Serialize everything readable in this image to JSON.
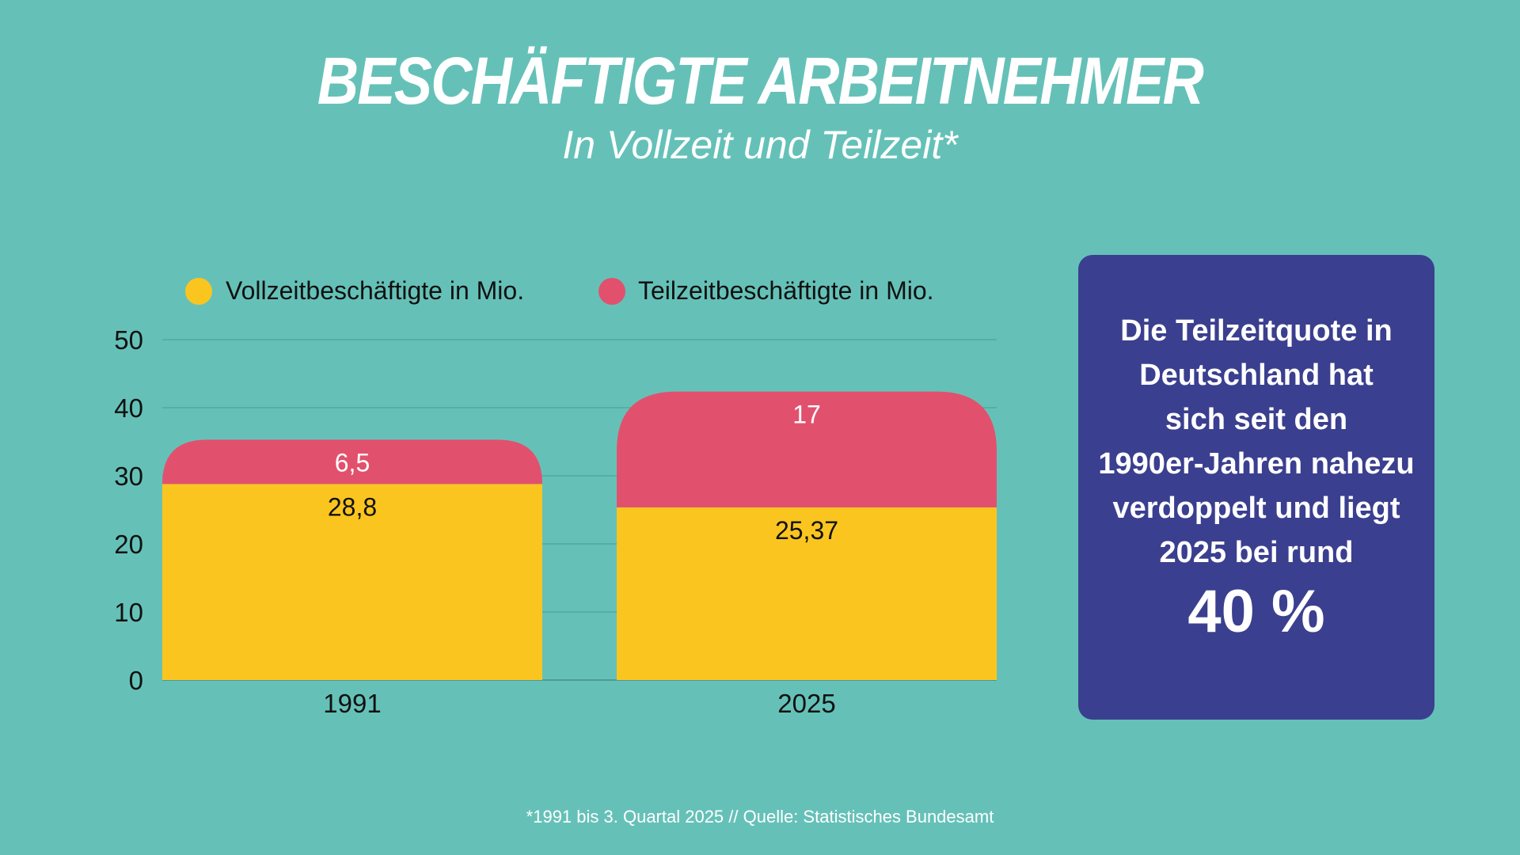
{
  "header": {
    "title": "BESCHÄFTIGTE ARBEITNEHMER",
    "subtitle": "In Vollzeit und Teilzeit*"
  },
  "chart_data": {
    "type": "bar",
    "stacked": true,
    "categories": [
      "1991",
      "2025"
    ],
    "series": [
      {
        "name": "Vollzeitbeschäftigte in Mio.",
        "values": [
          28.8,
          25.37
        ],
        "labels": [
          "28,8",
          "25,37"
        ],
        "color": "#fbc520"
      },
      {
        "name": "Teilzeitbeschäftigte in Mio.",
        "values": [
          6.5,
          17
        ],
        "labels": [
          "6,5",
          "17"
        ],
        "color": "#e1516e"
      }
    ],
    "ylim": [
      0,
      50
    ],
    "yticks": [
      0,
      10,
      20,
      30,
      40,
      50
    ],
    "grid": true,
    "legend": "top-left"
  },
  "info": {
    "lines": [
      "Die Teilzeitquote in",
      "Deutschland hat",
      "sich seit den",
      "1990er-Jahren nahezu",
      "verdoppelt und liegt",
      "2025 bei rund"
    ],
    "value": "40 %"
  },
  "footnote": "*1991 bis 3. Quartal 2025 // Quelle: Statistisches Bundesamt",
  "colors": {
    "background": "#65c1b8",
    "box": "#3b3f8f",
    "grid": "#4fa39b"
  }
}
